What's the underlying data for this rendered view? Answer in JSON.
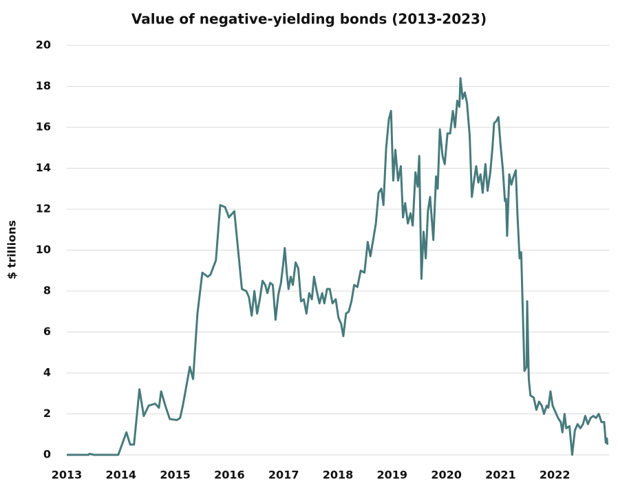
{
  "chart_data": {
    "type": "line",
    "title": "Value of negative-yielding bonds (2013-2023)",
    "y_label": "$ trillions",
    "color": "#477a7c",
    "grid": "y",
    "xlim": [
      2013,
      2023
    ],
    "xticks": [
      2013,
      2014,
      2015,
      2016,
      2017,
      2018,
      2019,
      2020,
      2021,
      2022
    ],
    "ylim": [
      0,
      20
    ],
    "yticks": [
      0,
      2,
      4,
      6,
      8,
      10,
      12,
      14,
      16,
      18,
      20
    ],
    "x": [
      2013.0,
      2013.4,
      2013.42,
      2013.5,
      2013.95,
      2014.1,
      2014.17,
      2014.24,
      2014.34,
      2014.42,
      2014.51,
      2014.63,
      2014.7,
      2014.74,
      2014.83,
      2014.9,
      2015.03,
      2015.09,
      2015.14,
      2015.27,
      2015.33,
      2015.41,
      2015.5,
      2015.6,
      2015.65,
      2015.75,
      2015.83,
      2015.92,
      2015.99,
      2016.09,
      2016.16,
      2016.23,
      2016.31,
      2016.36,
      2016.41,
      2016.46,
      2016.51,
      2016.56,
      2016.61,
      2016.66,
      2016.7,
      2016.75,
      2016.8,
      2016.85,
      2016.9,
      2016.95,
      2016.99,
      2017.02,
      2017.06,
      2017.09,
      2017.13,
      2017.17,
      2017.22,
      2017.27,
      2017.32,
      2017.37,
      2017.42,
      2017.47,
      2017.52,
      2017.56,
      2017.61,
      2017.66,
      2017.71,
      2017.75,
      2017.8,
      2017.85,
      2017.9,
      2017.96,
      2018.01,
      2018.06,
      2018.1,
      2018.15,
      2018.2,
      2018.25,
      2018.3,
      2018.36,
      2018.42,
      2018.49,
      2018.55,
      2018.6,
      2018.65,
      2018.7,
      2018.75,
      2018.8,
      2018.84,
      2018.89,
      2018.94,
      2018.98,
      2019.02,
      2019.06,
      2019.11,
      2019.16,
      2019.2,
      2019.24,
      2019.29,
      2019.34,
      2019.38,
      2019.43,
      2019.47,
      2019.5,
      2019.54,
      2019.58,
      2019.62,
      2019.66,
      2019.7,
      2019.76,
      2019.81,
      2019.84,
      2019.88,
      2019.93,
      2019.97,
      2020.02,
      2020.07,
      2020.12,
      2020.16,
      2020.2,
      2020.24,
      2020.26,
      2020.3,
      2020.34,
      2020.38,
      2020.43,
      2020.47,
      2020.51,
      2020.55,
      2020.59,
      2020.63,
      2020.67,
      2020.72,
      2020.76,
      2020.81,
      2020.85,
      2020.88,
      2020.92,
      2020.96,
      2021.0,
      2021.04,
      2021.08,
      2021.1,
      2021.12,
      2021.16,
      2021.2,
      2021.24,
      2021.28,
      2021.31,
      2021.35,
      2021.38,
      2021.42,
      2021.44,
      2021.48,
      2021.49,
      2021.52,
      2021.55,
      2021.61,
      2021.66,
      2021.71,
      2021.76,
      2021.8,
      2021.85,
      2021.88,
      2021.92,
      2021.96,
      2022.01,
      2022.06,
      2022.11,
      2022.14,
      2022.18,
      2022.21,
      2022.27,
      2022.32,
      2022.37,
      2022.42,
      2022.47,
      2022.52,
      2022.56,
      2022.61,
      2022.66,
      2022.71,
      2022.76,
      2022.81,
      2022.86,
      2022.91,
      2022.94,
      2022.96,
      2022.97
    ],
    "values": [
      0,
      0,
      0.05,
      0,
      0,
      1.1,
      0.5,
      0.5,
      3.2,
      1.9,
      2.4,
      2.5,
      2.3,
      3.1,
      2.3,
      1.75,
      1.7,
      1.8,
      2.4,
      4.3,
      3.7,
      6.9,
      8.9,
      8.7,
      8.8,
      9.5,
      12.2,
      12.1,
      11.6,
      11.9,
      10.0,
      8.1,
      8.0,
      7.7,
      6.8,
      8.0,
      6.9,
      7.6,
      8.5,
      8.3,
      7.9,
      8.4,
      8.3,
      6.6,
      7.8,
      8.4,
      9.3,
      10.1,
      8.8,
      8.1,
      8.7,
      8.3,
      9.4,
      9.1,
      7.5,
      7.6,
      6.9,
      7.9,
      7.6,
      8.7,
      8.0,
      7.4,
      7.9,
      7.4,
      8.1,
      8.1,
      7.4,
      7.6,
      6.7,
      6.4,
      5.8,
      6.9,
      7.0,
      7.5,
      8.3,
      8.2,
      9.0,
      8.9,
      10.4,
      9.7,
      10.5,
      11.3,
      12.8,
      13.0,
      12.2,
      15.0,
      16.4,
      16.8,
      13.4,
      14.9,
      13.4,
      14.1,
      11.6,
      12.3,
      11.3,
      11.8,
      11.2,
      13.8,
      13.1,
      14.6,
      8.6,
      10.9,
      9.6,
      11.9,
      12.6,
      10.5,
      13.6,
      13.0,
      15.9,
      14.6,
      14.2,
      15.7,
      15.7,
      16.8,
      16.0,
      17.3,
      17.0,
      18.4,
      17.4,
      17.7,
      17.2,
      15.6,
      12.6,
      13.4,
      14.1,
      13.3,
      13.7,
      12.8,
      14.2,
      12.9,
      13.8,
      15.0,
      16.2,
      16.3,
      16.5,
      15.1,
      14.0,
      12.4,
      12.5,
      10.7,
      13.7,
      13.2,
      13.6,
      13.9,
      11.8,
      9.6,
      9.9,
      6.0,
      4.1,
      4.3,
      7.5,
      3.7,
      2.9,
      2.8,
      2.2,
      2.6,
      2.4,
      2.0,
      2.4,
      2.3,
      3.1,
      2.4,
      2.1,
      1.8,
      1.6,
      1.1,
      2.0,
      1.3,
      1.4,
      0.0,
      1.2,
      1.5,
      1.3,
      1.5,
      1.9,
      1.5,
      1.8,
      1.9,
      1.8,
      2.0,
      1.6,
      1.6,
      0.6,
      0.8,
      0.5
    ]
  }
}
